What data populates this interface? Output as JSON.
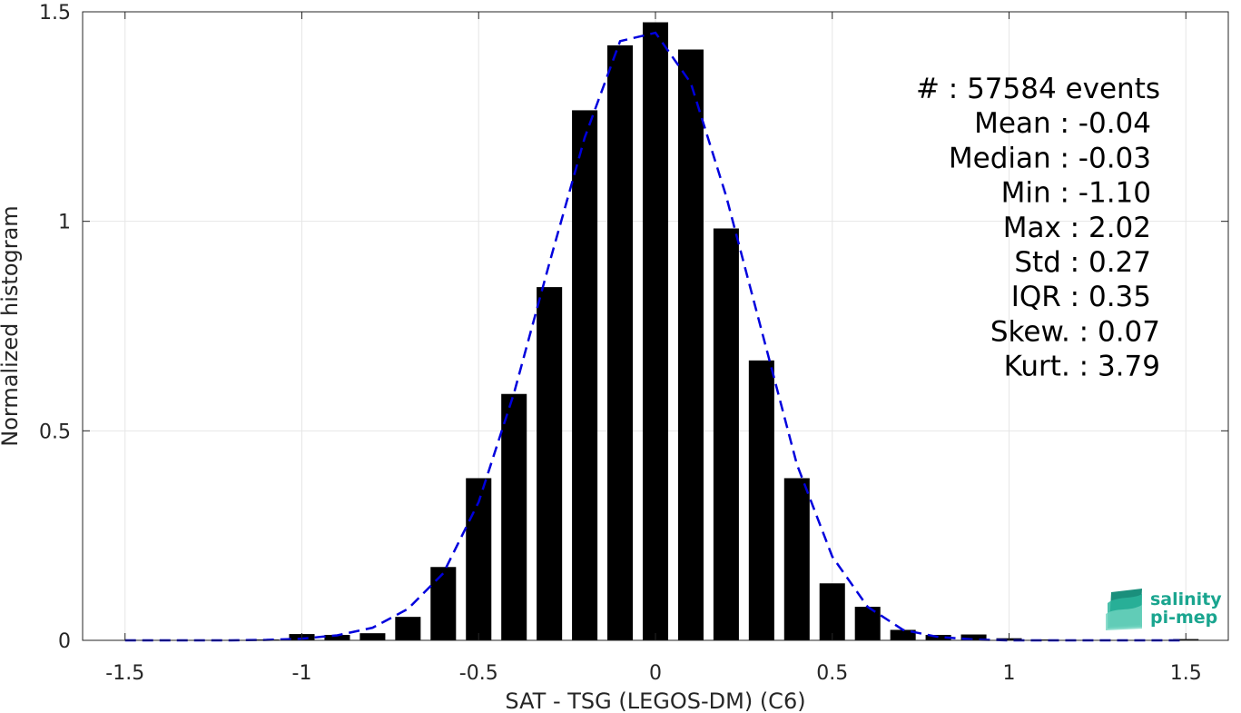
{
  "chart_data": {
    "type": "bar",
    "xlabel": "SAT - TSG (LEGOS-DM) (C6)",
    "ylabel": "Normalized histogram",
    "xlim": [
      -1.62,
      1.62
    ],
    "ylim": [
      0,
      1.5
    ],
    "x_ticks": [
      -1.5,
      -1,
      -0.5,
      0,
      0.5,
      1,
      1.5
    ],
    "x_tick_labels": [
      "-1.5",
      "-1",
      "-0.5",
      "0",
      "0.5",
      "1",
      "1.5"
    ],
    "y_ticks": [
      0,
      0.5,
      1,
      1.5
    ],
    "y_tick_labels": [
      "0",
      "0.5",
      "1",
      "1.5"
    ],
    "grid": true,
    "bar_width": 0.072,
    "bars": {
      "x": [
        -1.1,
        -1.0,
        -0.9,
        -0.8,
        -0.7,
        -0.6,
        -0.5,
        -0.4,
        -0.3,
        -0.2,
        -0.1,
        0.0,
        0.1,
        0.2,
        0.3,
        0.4,
        0.5,
        0.6,
        0.7,
        0.8,
        0.9,
        1.0,
        1.1,
        1.5
      ],
      "values": [
        0.002,
        0.015,
        0.013,
        0.017,
        0.056,
        0.175,
        0.387,
        0.588,
        0.843,
        1.265,
        1.42,
        1.475,
        1.41,
        0.983,
        0.668,
        0.387,
        0.136,
        0.08,
        0.025,
        0.013,
        0.014,
        0.005,
        0.002,
        0.003
      ]
    },
    "fit_curve": {
      "color": "#0000dd",
      "style": "dashed",
      "x": [
        -1.5,
        -1.4,
        -1.3,
        -1.2,
        -1.1,
        -1.0,
        -0.9,
        -0.8,
        -0.7,
        -0.6,
        -0.5,
        -0.4,
        -0.3,
        -0.2,
        -0.1,
        0.0,
        0.1,
        0.2,
        0.3,
        0.4,
        0.5,
        0.6,
        0.7,
        0.8,
        0.9,
        1.0,
        1.1,
        1.2,
        1.3,
        1.4,
        1.5
      ],
      "y": [
        0.0,
        0.0,
        0.0,
        0.0,
        0.001,
        0.004,
        0.012,
        0.03,
        0.075,
        0.16,
        0.33,
        0.59,
        0.9,
        1.2,
        1.43,
        1.45,
        1.33,
        1.06,
        0.74,
        0.42,
        0.2,
        0.08,
        0.025,
        0.008,
        0.002,
        0.0,
        0.0,
        0.0,
        0.0,
        0.0,
        0.0
      ]
    },
    "bar_color": "#000000",
    "annotation_lines": [
      "#  : 57584 events",
      "Mean : -0.04",
      "Median : -0.03",
      "Min : -1.10",
      "Max : 2.02",
      "Std : 0.27",
      "IQR : 0.35",
      "Skew. : 0.07",
      "Kurt. : 3.79"
    ]
  },
  "logo": {
    "line1": "salinity",
    "line2": "pi-mep",
    "color": "#1aa58f"
  }
}
